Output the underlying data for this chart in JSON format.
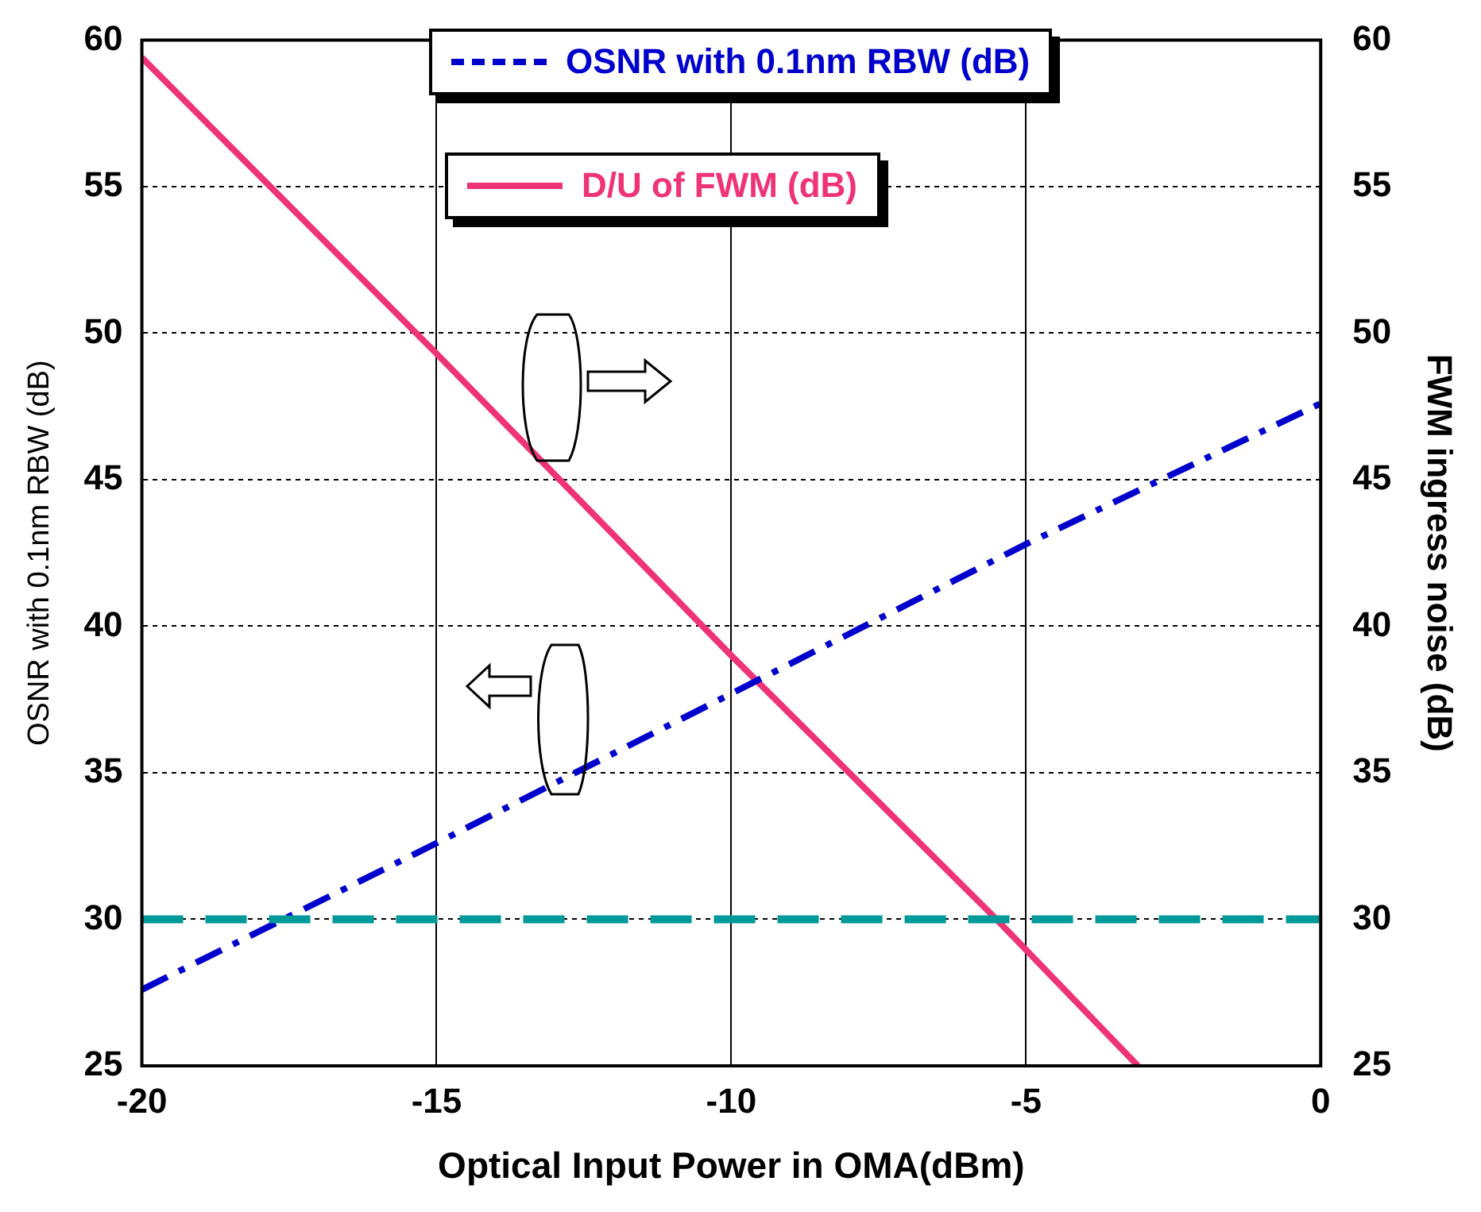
{
  "chart_data": {
    "type": "line",
    "xlabel": "Optical Input Power in OMA(dBm)",
    "ylabel": "OSNR with 0.1nm RBW (dB)",
    "y2label": "FWM ingress noise (dB)",
    "xlim": [
      -20,
      0
    ],
    "xticks": [
      -20,
      -15,
      -10,
      -5,
      0
    ],
    "ylim": [
      25,
      60
    ],
    "yticks": [
      25,
      30,
      35,
      40,
      45,
      50,
      55,
      60
    ],
    "y2lim": [
      25,
      60
    ],
    "y2ticks": [
      25,
      30,
      35,
      40,
      45,
      50,
      55,
      60
    ],
    "grid": true,
    "legend": "top right",
    "marker": "none",
    "series": [
      {
        "name": "OSNR with 0.1nm RBW (dB)",
        "color": "#0000cc",
        "line_style": "dashed",
        "x": [
          -20,
          -15,
          -10,
          -5,
          0
        ],
        "values": [
          27.6,
          32.6,
          37.7,
          42.8,
          47.6
        ]
      },
      {
        "name": "D/U of FWM (dB)",
        "color": "#ee3377",
        "line_style": "solid",
        "axis": "y2",
        "x": [
          -20,
          -15,
          -10,
          -5.5,
          -3.1
        ],
        "values": [
          59.4,
          49.3,
          39,
          30,
          25
        ]
      }
    ],
    "ref_lines": [
      {
        "axis": "y",
        "value": 30,
        "color": "#009999",
        "line_style": "dashed"
      }
    ]
  }
}
